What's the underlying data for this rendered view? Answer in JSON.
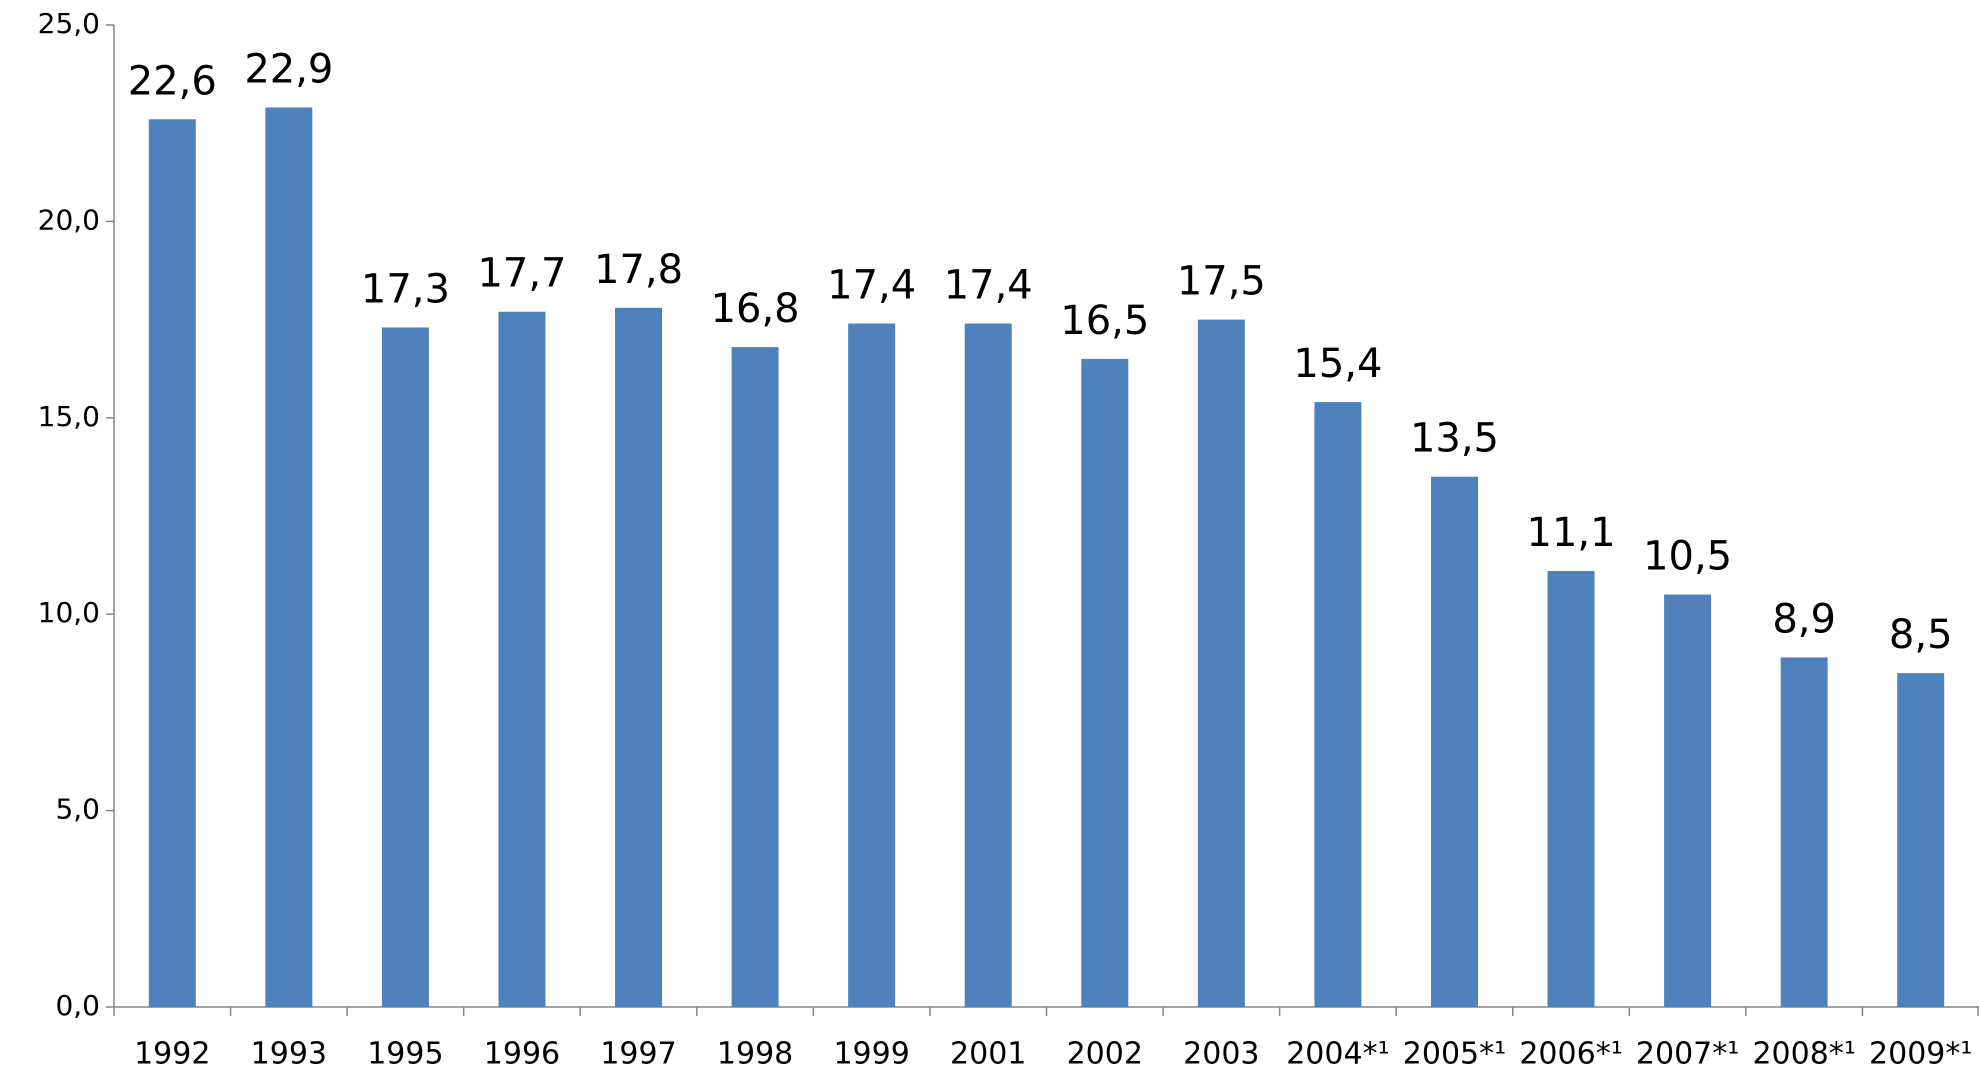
{
  "chart_data": {
    "type": "bar",
    "categories": [
      "1992",
      "1993",
      "1995",
      "1996",
      "1997",
      "1998",
      "1999",
      "2001",
      "2002",
      "2003",
      "2004*¹",
      "2005*¹",
      "2006*¹",
      "2007*¹",
      "2008*¹",
      "2009*¹"
    ],
    "values": [
      22.6,
      22.9,
      17.3,
      17.7,
      17.8,
      16.8,
      17.4,
      17.4,
      16.5,
      17.5,
      15.4,
      13.5,
      11.1,
      10.5,
      8.9,
      8.5
    ],
    "value_labels": [
      "22,6",
      "22,9",
      "17,3",
      "17,7",
      "17,8",
      "16,8",
      "17,4",
      "17,4",
      "16,5",
      "17,5",
      "15,4",
      "13,5",
      "11,1",
      "10,5",
      "8,9",
      "8,5"
    ],
    "color": "#4f81bd",
    "ylim": [
      0,
      25
    ],
    "yticks": [
      {
        "value": 0,
        "label": "0,0"
      },
      {
        "value": 5,
        "label": "5,0"
      },
      {
        "value": 10,
        "label": "10,0"
      },
      {
        "value": 15,
        "label": "15,0"
      },
      {
        "value": 20,
        "label": "20,0"
      },
      {
        "value": 25,
        "label": "25,0"
      }
    ],
    "grid": false
  }
}
